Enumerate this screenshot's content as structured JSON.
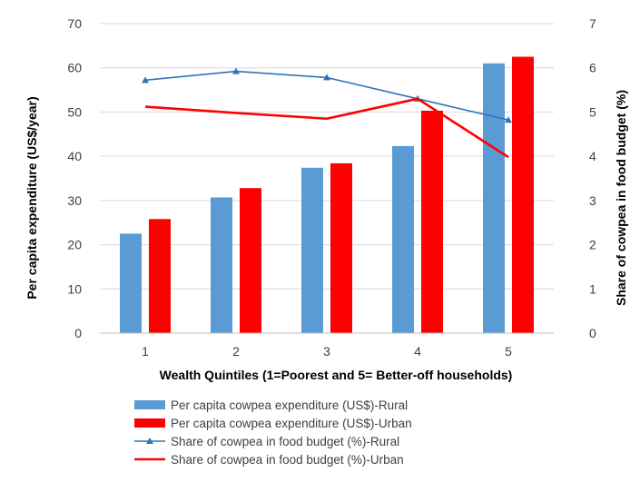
{
  "chart_data": {
    "type": "bar",
    "categories": [
      "1",
      "2",
      "3",
      "4",
      "5"
    ],
    "xlabel": "Wealth Quintiles (1=Poorest and 5= Better-off households)",
    "ylabel": "Per capita expenditure (US$/year)",
    "y2label": "Share of cowpea in food budget (%)",
    "ylim": [
      0,
      70
    ],
    "yticks": [
      "0",
      "10",
      "20",
      "30",
      "40",
      "50",
      "60",
      "70"
    ],
    "y2lim": [
      0,
      7
    ],
    "y2ticks": [
      "0",
      "1",
      "2",
      "3",
      "4",
      "5",
      "6",
      "7"
    ],
    "grid": true,
    "legend_position": "bottom",
    "series": [
      {
        "name": "Per capita cowpea expenditure (US$)-Rural",
        "kind": "bar",
        "axis": "left",
        "color": "#5b9bd5",
        "values": [
          22.5,
          30.7,
          37.4,
          42.3,
          61.0
        ]
      },
      {
        "name": "Per capita cowpea expenditure (US$)-Urban",
        "kind": "bar",
        "axis": "left",
        "color": "#ff0000",
        "values": [
          25.8,
          32.8,
          38.4,
          50.3,
          62.5
        ]
      },
      {
        "name": "Share of cowpea in food budget (%)-Rural",
        "kind": "line",
        "marker": "triangle",
        "axis": "right",
        "color": "#2e75b6",
        "values": [
          5.72,
          5.92,
          5.78,
          5.3,
          4.82
        ]
      },
      {
        "name": "Share of cowpea in food budget (%)-Urban",
        "kind": "line",
        "axis": "right",
        "color": "#ff0000",
        "values": [
          5.12,
          4.98,
          4.85,
          5.3,
          3.98
        ]
      }
    ]
  }
}
